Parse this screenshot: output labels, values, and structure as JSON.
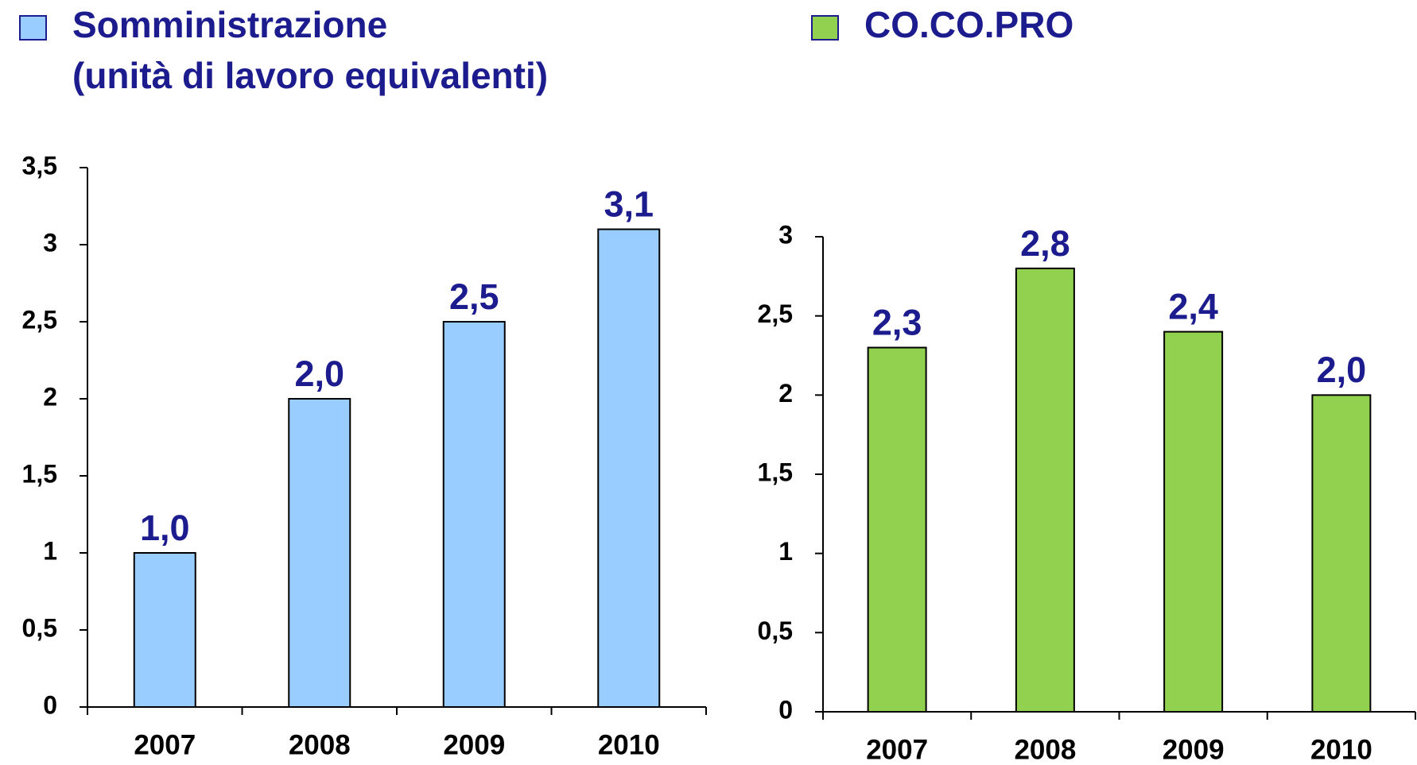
{
  "chart_data": [
    {
      "type": "bar",
      "series": [
        {
          "name": "Somministrazione",
          "color": "#99ccff",
          "values": [
            1.0,
            2.0,
            2.5,
            3.1
          ],
          "value_labels": [
            "1,0",
            "2,0",
            "2,5",
            "3,1"
          ]
        }
      ],
      "subtitle": "(unità di lavoro equivalenti)",
      "categories": [
        "2007",
        "2008",
        "2009",
        "2010"
      ],
      "ylim": [
        0,
        3.5
      ],
      "yticks": [
        0,
        {
          "value": 0.5,
          "label": "0,5"
        },
        1,
        {
          "value": 1.5,
          "label": "1,5"
        },
        2,
        {
          "value": 2.5,
          "label": "2,5"
        },
        3,
        {
          "value": 3.5,
          "label": "3,5"
        }
      ]
    },
    {
      "type": "bar",
      "series": [
        {
          "name": "CO.CO.PRO",
          "color": "#92d050",
          "values": [
            2.3,
            2.8,
            2.4,
            2.0
          ],
          "value_labels": [
            "2,3",
            "2,8",
            "2,4",
            "2,0"
          ]
        }
      ],
      "categories": [
        "2007",
        "2008",
        "2009",
        "2010"
      ],
      "ylim": [
        0,
        3
      ],
      "yticks": [
        0,
        {
          "value": 0.5,
          "label": "0,5"
        },
        1,
        {
          "value": 1.5,
          "label": "1,5"
        },
        2,
        {
          "value": 2.5,
          "label": "2,5"
        },
        3
      ]
    }
  ]
}
